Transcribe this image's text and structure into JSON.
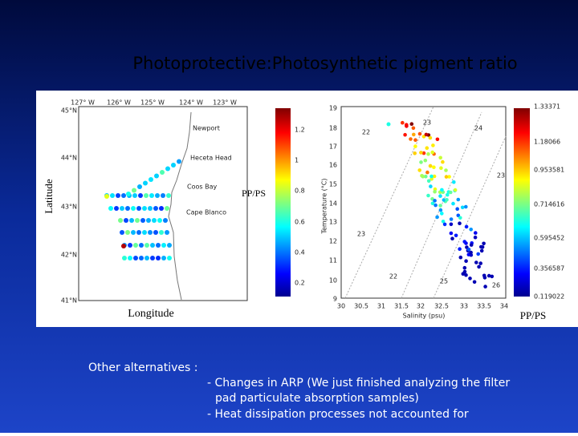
{
  "title": "Photoprotective:Photosynthetic pigment ratio",
  "figure": {
    "map": {
      "y_label": "Latitude",
      "x_label": "Longitude",
      "lat_ticks": [
        "45°N",
        "44°N",
        "43°N",
        "42°N",
        "41°N"
      ],
      "lon_ticks": [
        "127° W",
        "126° W",
        "125° W",
        "124° W",
        "123° W"
      ],
      "places": [
        "Newport",
        "Heceta Head",
        "Coos Bay",
        "Cape Blanco"
      ]
    },
    "colorbar1": {
      "label": "PP/PS",
      "ticks": [
        "1.2",
        "1",
        "0.8",
        "0.6",
        "0.4",
        "0.2"
      ]
    },
    "ts": {
      "y_label": "Temperature (°C)",
      "x_label": "Salinity (psu)",
      "y_ticks": [
        "19",
        "18",
        "17",
        "16",
        "15",
        "14",
        "13",
        "12",
        "11",
        "10",
        "9"
      ],
      "x_ticks": [
        "30",
        "30.5",
        "31",
        "31.5",
        "32",
        "32.5",
        "33",
        "33.5",
        "34"
      ],
      "density_labels": [
        "22",
        "23",
        "24",
        "23",
        "22",
        "25",
        "26",
        "23"
      ]
    },
    "colorbar2": {
      "label": "PP/PS",
      "ticks": [
        "1.33371",
        "1.18066",
        "0.953581",
        "0.714616",
        "0.595452",
        "0.356587",
        "0.119022"
      ]
    }
  },
  "notes": {
    "heading": "Other alternatives :",
    "items": [
      "- Changes in ARP (We just finished analyzing the filter",
      "pad particulate absorption samples)",
      "- Heat dissipation processes not accounted for"
    ]
  }
}
